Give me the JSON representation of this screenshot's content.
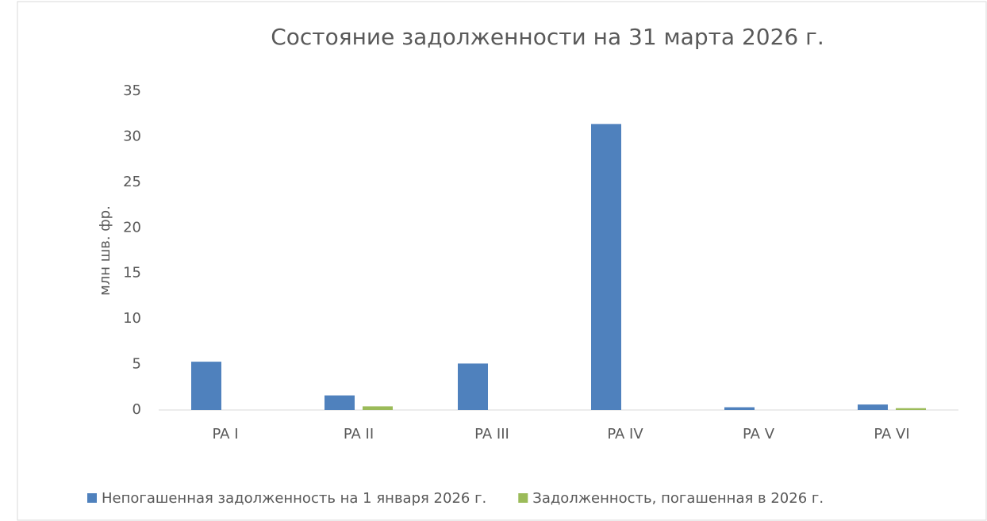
{
  "chart_data": {
    "type": "bar",
    "title": "Состояние задолженности на 31 марта 2026 г.",
    "y_label": "млн шв. фр.",
    "categories": [
      "PA I",
      "PA II",
      "PA III",
      "PA IV",
      "PA V",
      "PA VI"
    ],
    "series": [
      {
        "name": "Непогашенная задолженность на 1 января 2026 г.",
        "color": "#4f81bd",
        "values": [
          5.3,
          1.6,
          5.1,
          31.4,
          0.3,
          0.6
        ]
      },
      {
        "name": "Задолженность, погашенная в 2026 г.",
        "color": "#9bbb59",
        "values": [
          0,
          0.4,
          0,
          0,
          0,
          0.2
        ]
      }
    ],
    "ylim": [
      0,
      35
    ],
    "yticks": [
      0,
      5,
      10,
      15,
      20,
      25,
      30,
      35
    ],
    "grid": false,
    "legend": "bottom"
  }
}
